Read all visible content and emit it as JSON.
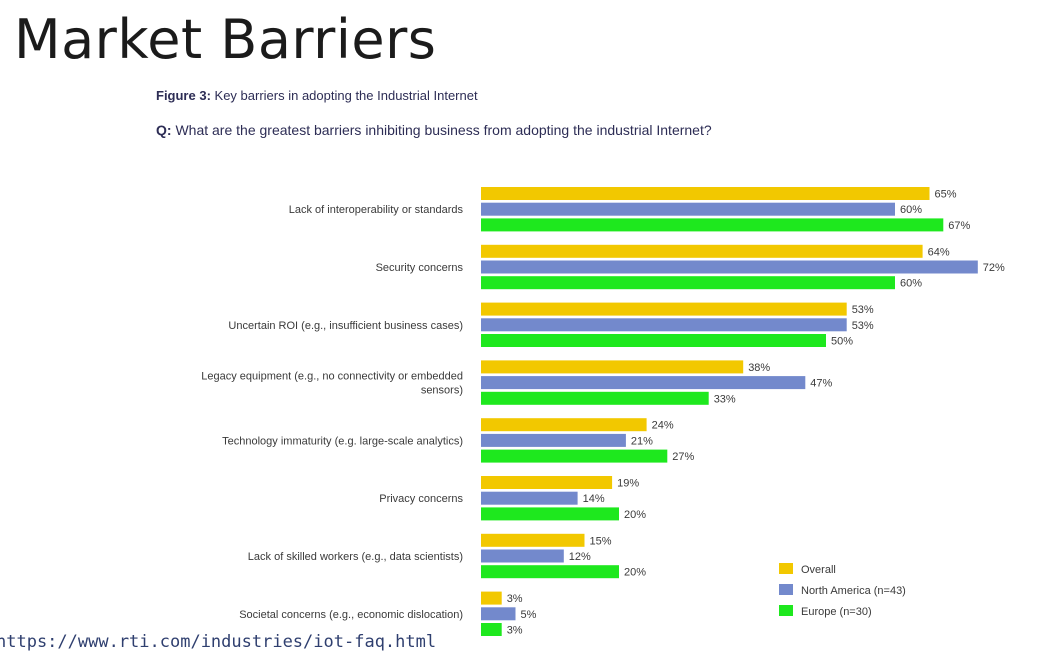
{
  "slide": {
    "title": "Market Barriers",
    "figure_label": "Figure 3:",
    "figure_caption": "Key barriers in adopting the Industrial Internet",
    "question_label": "Q:",
    "question_text": "What are the greatest barriers inhibiting business from adopting the industrial Internet?",
    "source_url": "https://www.rti.com/industries/iot-faq.html"
  },
  "chart_data": {
    "type": "bar",
    "orientation": "horizontal",
    "categories": [
      [
        "Lack of interoperability or standards"
      ],
      [
        "Security concerns"
      ],
      [
        "Uncertain ROI (e.g., insufficient business cases)"
      ],
      [
        "Legacy equipment (e.g., no connectivity or embedded",
        "sensors)"
      ],
      [
        "Technology immaturity (e.g. large-scale analytics)"
      ],
      [
        "Privacy concerns"
      ],
      [
        "Lack of skilled workers (e.g., data scientists)"
      ],
      [
        "Societal concerns (e.g., economic dislocation)"
      ]
    ],
    "series": [
      {
        "name": "Overall",
        "color": "#f2c800",
        "values": [
          65,
          64,
          53,
          38,
          24,
          19,
          15,
          3
        ]
      },
      {
        "name": "North America (n=43)",
        "color": "#7389cc",
        "values": [
          60,
          72,
          53,
          47,
          21,
          14,
          12,
          5
        ]
      },
      {
        "name": "Europe (n=30)",
        "color": "#1ee81e",
        "values": [
          67,
          60,
          50,
          33,
          27,
          20,
          20,
          3
        ]
      }
    ],
    "value_suffix": "%",
    "xlim": [
      0,
      100
    ],
    "grid": false,
    "legend_position": "bottom-right"
  }
}
